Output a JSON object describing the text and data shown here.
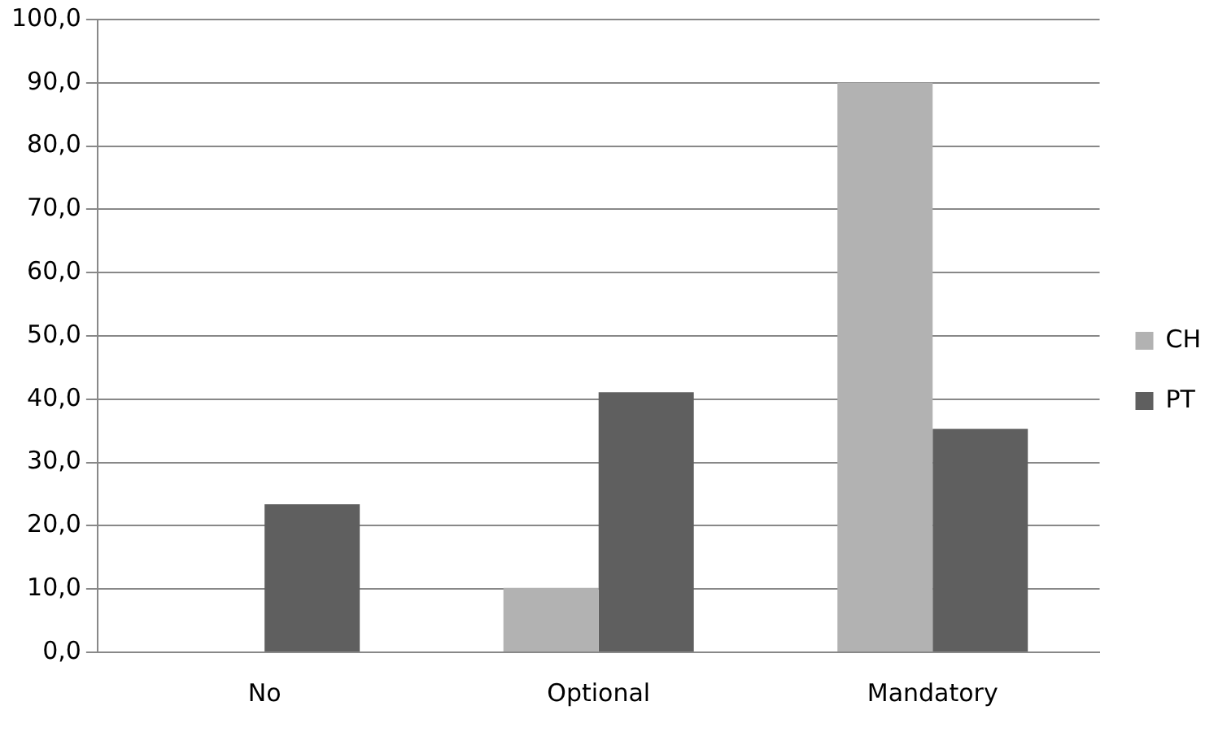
{
  "chart_data": {
    "type": "bar",
    "categories": [
      "No",
      "Optional",
      "Mandatory"
    ],
    "series": [
      {
        "name": "CH",
        "color": "#b2b2b2",
        "values": [
          0,
          10.2,
          90
        ]
      },
      {
        "name": "PT",
        "color": "#5f5f5f",
        "values": [
          23.4,
          41.1,
          35.3
        ]
      }
    ],
    "ylim": [
      0,
      100
    ],
    "yticks": [
      {
        "value": 0,
        "label": "0,0"
      },
      {
        "value": 10,
        "label": "10,0"
      },
      {
        "value": 20,
        "label": "20,0"
      },
      {
        "value": 30,
        "label": "30,0"
      },
      {
        "value": 40,
        "label": "40,0"
      },
      {
        "value": 50,
        "label": "50,0"
      },
      {
        "value": 60,
        "label": "60,0"
      },
      {
        "value": 70,
        "label": "70,0"
      },
      {
        "value": 80,
        "label": "80,0"
      },
      {
        "value": 90,
        "label": "90,0"
      },
      {
        "value": 100,
        "label": "100,0"
      }
    ],
    "grid": "y",
    "legend": "right"
  }
}
